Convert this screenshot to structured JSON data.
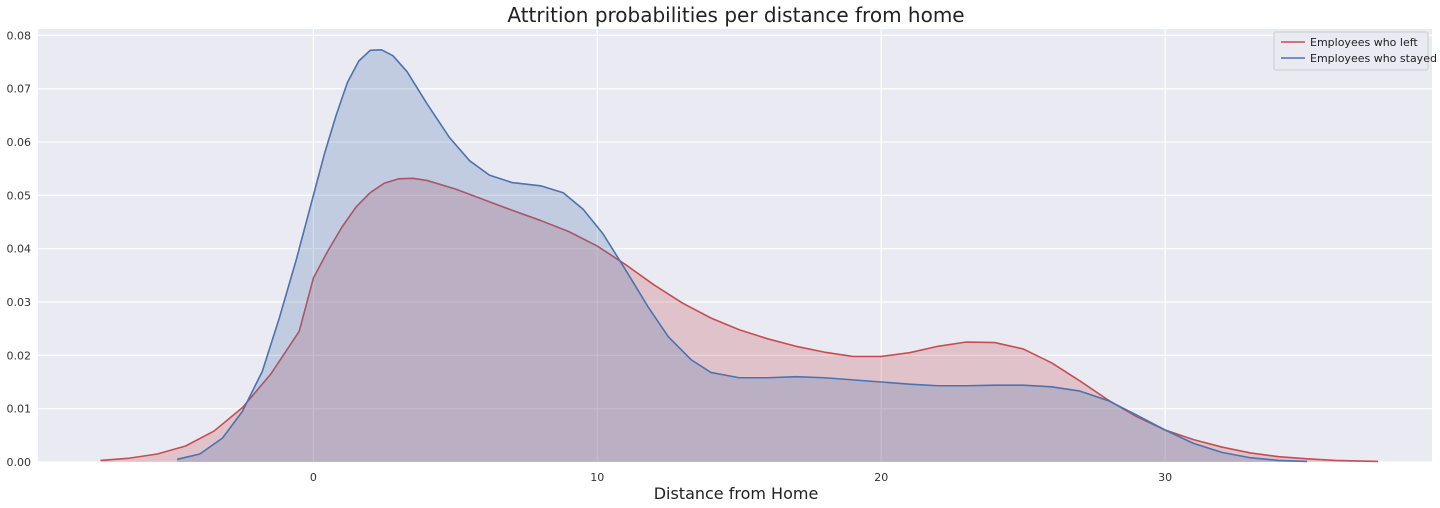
{
  "chart_data": {
    "type": "area",
    "title": "Attrition probabilities per distance from home",
    "xlabel": "Distance from Home",
    "ylabel": "",
    "xlim": [
      -9.7,
      39.4
    ],
    "ylim": [
      0,
      0.0812
    ],
    "x_ticks": [
      0,
      10,
      20,
      30
    ],
    "x_tick_labels": [
      "0",
      "10",
      "20",
      "30"
    ],
    "y_ticks": [
      0,
      0.01,
      0.02,
      0.03,
      0.04,
      0.05,
      0.06,
      0.07,
      0.08
    ],
    "y_tick_labels": [
      "0.00",
      "0.01",
      "0.02",
      "0.03",
      "0.04",
      "0.05",
      "0.06",
      "0.07",
      "0.08"
    ],
    "grid": true,
    "legend_position": "top-right",
    "series": [
      {
        "name": "Employees who left",
        "color": "#c44e52",
        "points": [
          [
            -7.5,
            0.0003
          ],
          [
            -6.5,
            0.0007
          ],
          [
            -5.5,
            0.0015
          ],
          [
            -4.5,
            0.003
          ],
          [
            -3.5,
            0.0058
          ],
          [
            -2.5,
            0.0102
          ],
          [
            -1.5,
            0.0165
          ],
          [
            -0.5,
            0.0245
          ],
          [
            0,
            0.0345
          ],
          [
            0.5,
            0.0395
          ],
          [
            1.0,
            0.044
          ],
          [
            1.5,
            0.0478
          ],
          [
            2.0,
            0.0505
          ],
          [
            2.5,
            0.0523
          ],
          [
            3.0,
            0.0531
          ],
          [
            3.5,
            0.0532
          ],
          [
            4.0,
            0.0528
          ],
          [
            5.0,
            0.0512
          ],
          [
            6.0,
            0.0492
          ],
          [
            7.0,
            0.0472
          ],
          [
            8.0,
            0.0453
          ],
          [
            9.0,
            0.0432
          ],
          [
            10.0,
            0.0405
          ],
          [
            11.0,
            0.037
          ],
          [
            12.0,
            0.0332
          ],
          [
            13.0,
            0.0298
          ],
          [
            14.0,
            0.027
          ],
          [
            15.0,
            0.0248
          ],
          [
            16.0,
            0.0231
          ],
          [
            17.0,
            0.0217
          ],
          [
            18.0,
            0.0206
          ],
          [
            19.0,
            0.0198
          ],
          [
            20.0,
            0.0198
          ],
          [
            21.0,
            0.0205
          ],
          [
            22.0,
            0.0217
          ],
          [
            23.0,
            0.0225
          ],
          [
            24.0,
            0.0224
          ],
          [
            25.0,
            0.0212
          ],
          [
            26.0,
            0.0186
          ],
          [
            27.0,
            0.0152
          ],
          [
            28.0,
            0.0116
          ],
          [
            29.0,
            0.0085
          ],
          [
            30.0,
            0.006
          ],
          [
            31.0,
            0.0042
          ],
          [
            32.0,
            0.0028
          ],
          [
            33.0,
            0.0017
          ],
          [
            34.0,
            0.001
          ],
          [
            35.0,
            0.0006
          ],
          [
            36.0,
            0.0003
          ],
          [
            37.5,
            0.0001
          ]
        ]
      },
      {
        "name": "Employees who stayed",
        "color": "#4c72b0",
        "points": [
          [
            -4.8,
            0.0005
          ],
          [
            -4.0,
            0.0015
          ],
          [
            -3.2,
            0.0045
          ],
          [
            -2.5,
            0.0095
          ],
          [
            -1.8,
            0.017
          ],
          [
            -1.2,
            0.027
          ],
          [
            -0.6,
            0.038
          ],
          [
            0,
            0.05
          ],
          [
            0.4,
            0.058
          ],
          [
            0.8,
            0.065
          ],
          [
            1.2,
            0.0712
          ],
          [
            1.6,
            0.0752
          ],
          [
            2.0,
            0.0772
          ],
          [
            2.4,
            0.0773
          ],
          [
            2.8,
            0.0762
          ],
          [
            3.3,
            0.0732
          ],
          [
            4.0,
            0.0672
          ],
          [
            4.8,
            0.0608
          ],
          [
            5.5,
            0.0565
          ],
          [
            6.2,
            0.0538
          ],
          [
            7.0,
            0.0524
          ],
          [
            8.0,
            0.0518
          ],
          [
            8.8,
            0.0505
          ],
          [
            9.5,
            0.0474
          ],
          [
            10.2,
            0.0428
          ],
          [
            11.0,
            0.036
          ],
          [
            11.8,
            0.029
          ],
          [
            12.5,
            0.0235
          ],
          [
            13.3,
            0.0192
          ],
          [
            14.0,
            0.0168
          ],
          [
            15.0,
            0.0158
          ],
          [
            16.0,
            0.0158
          ],
          [
            17.0,
            0.016
          ],
          [
            18.0,
            0.0158
          ],
          [
            19.0,
            0.0154
          ],
          [
            20.0,
            0.015
          ],
          [
            21.0,
            0.0146
          ],
          [
            22.0,
            0.0143
          ],
          [
            23.0,
            0.0143
          ],
          [
            24.0,
            0.0144
          ],
          [
            25.0,
            0.0144
          ],
          [
            26.0,
            0.0141
          ],
          [
            27.0,
            0.0133
          ],
          [
            28.0,
            0.0115
          ],
          [
            29.0,
            0.0088
          ],
          [
            30.0,
            0.006
          ],
          [
            31.0,
            0.0035
          ],
          [
            32.0,
            0.0018
          ],
          [
            33.0,
            0.0008
          ],
          [
            34.0,
            0.0003
          ],
          [
            35.0,
            0.0001
          ]
        ]
      }
    ]
  }
}
